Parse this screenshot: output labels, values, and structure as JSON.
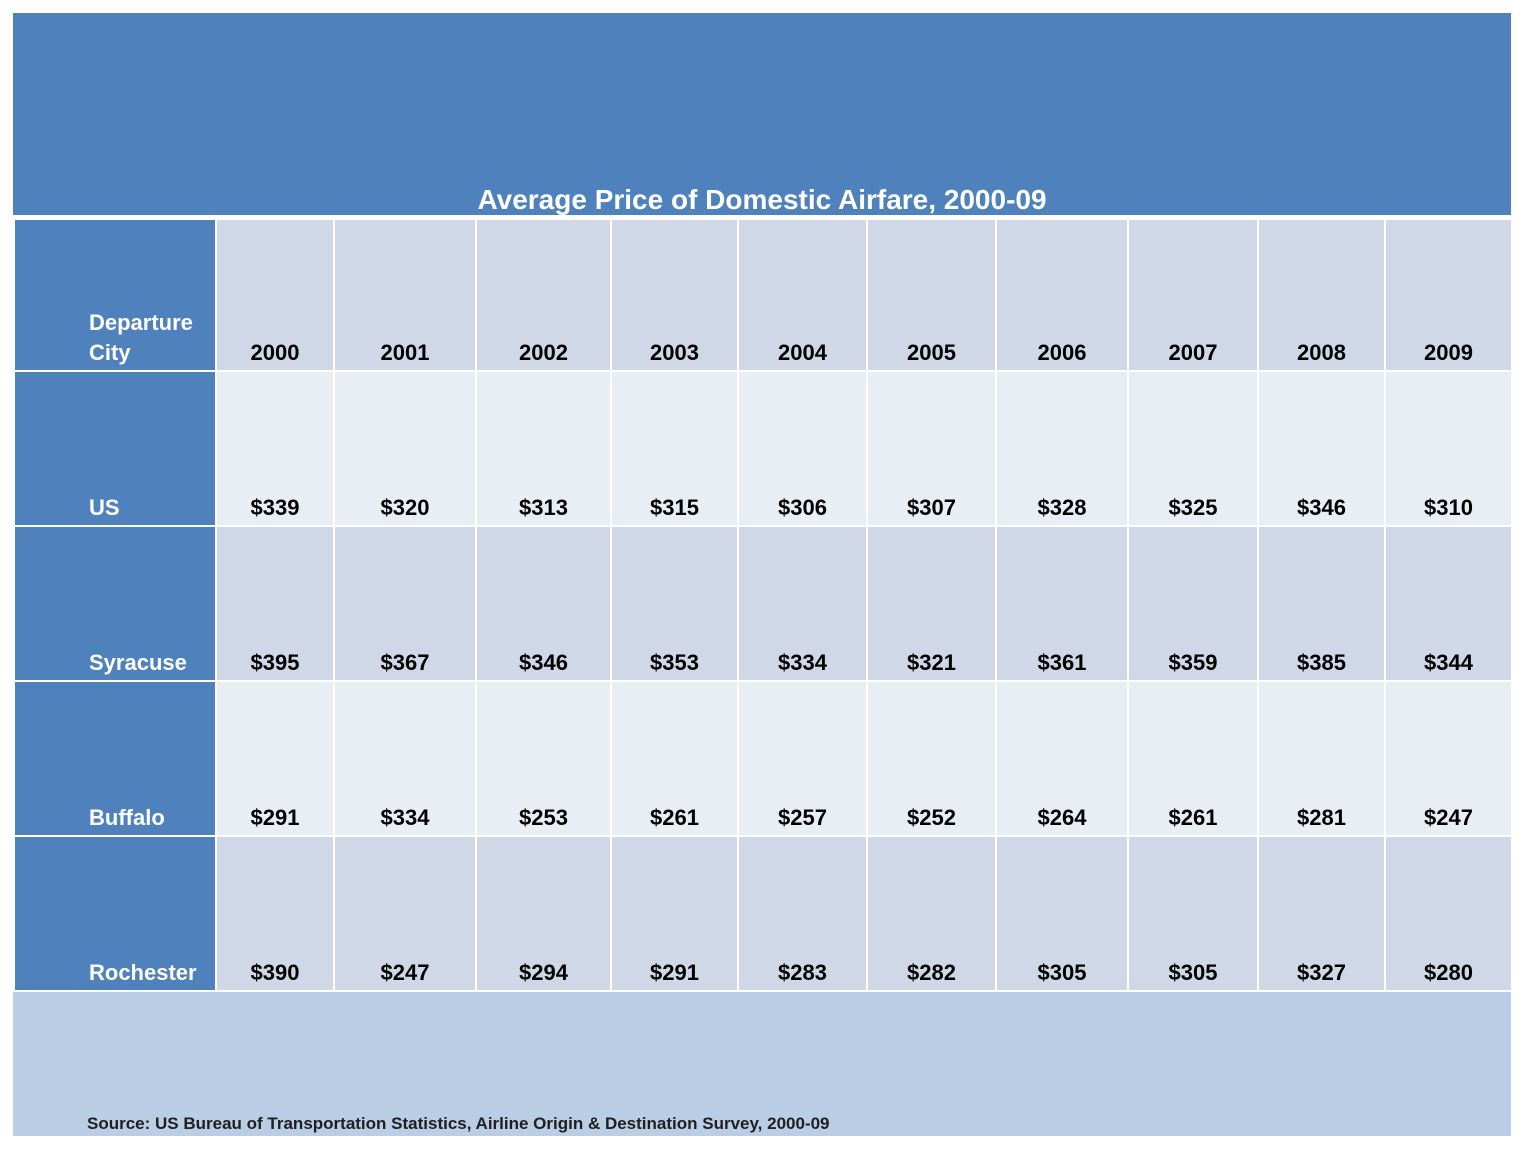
{
  "chart_data": {
    "type": "table",
    "title": "Average Price of Domestic Airfare, 2000-09",
    "row_header_label": "Departure City",
    "columns": [
      "2000",
      "2001",
      "2002",
      "2003",
      "2004",
      "2005",
      "2006",
      "2007",
      "2008",
      "2009"
    ],
    "rows": [
      {
        "city": "US",
        "values": [
          "$339",
          "$320",
          "$313",
          "$315",
          "$306",
          "$307",
          "$328",
          "$325",
          "$346",
          "$310"
        ]
      },
      {
        "city": "Syracuse",
        "values": [
          "$395",
          "$367",
          "$346",
          "$353",
          "$334",
          "$321",
          "$361",
          "$359",
          "$385",
          "$344"
        ]
      },
      {
        "city": "Buffalo",
        "values": [
          "$291",
          "$334",
          "$253",
          "$261",
          "$257",
          "$252",
          "$264",
          "$261",
          "$281",
          "$247"
        ]
      },
      {
        "city": "Rochester",
        "values": [
          "$390",
          "$247",
          "$294",
          "$291",
          "$283",
          "$282",
          "$305",
          "$305",
          "$327",
          "$280"
        ]
      }
    ],
    "source": "Source: US Bureau of Transportation Statistics,  Airline Origin & Destination Survey, 2000-09"
  },
  "colors": {
    "header_blue": "#4f81bd",
    "cell_dark": "#d0d8e8",
    "cell_light": "#e9edf4",
    "footer": "#b9cde5"
  }
}
